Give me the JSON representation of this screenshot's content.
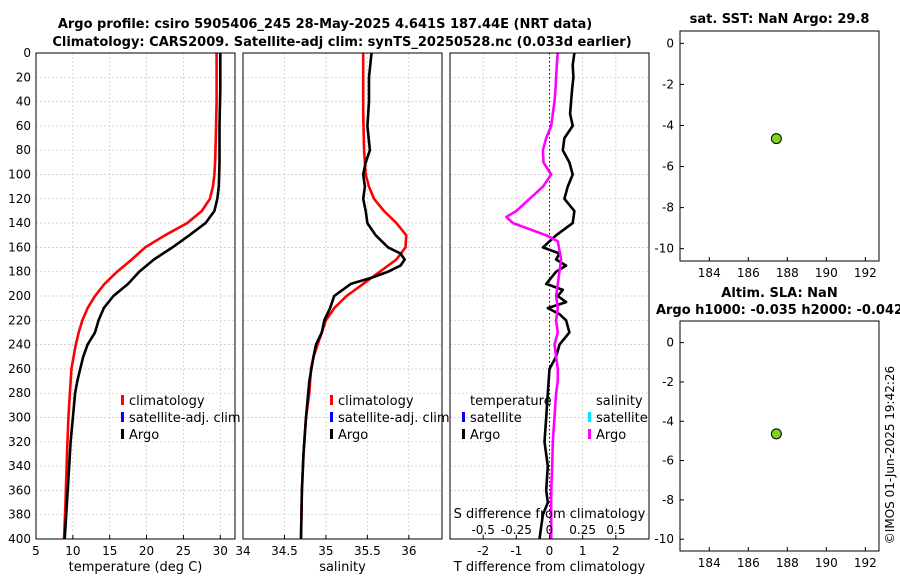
{
  "title_line1": "Argo profile: csiro 5905406_245 28-May-2025 4.641S 187.44E (NRT data)",
  "title_line2": "Climatology: CARS2009. Satellite-adj clim: synTS_20250528.nc (0.033d earlier)",
  "watermark": "©IMOS 01-Jun-2025 19:42:26",
  "colors": {
    "climatology": "#ff0000",
    "satellite": "#0000ff",
    "argo": "#000000",
    "satellite_s": "#00e5ff",
    "argo_s": "#ff00ff",
    "dot": "#7ed321"
  },
  "chart_data": [
    {
      "id": "temp",
      "type": "line",
      "xlabel": "temperature (deg C)",
      "ylabel": "",
      "xlim": [
        5,
        32
      ],
      "ylim": [
        0,
        400
      ],
      "xticks": [
        "5",
        "10",
        "15",
        "20",
        "25",
        "30"
      ],
      "yticks": [
        "0",
        "20",
        "40",
        "60",
        "80",
        "100",
        "120",
        "140",
        "160",
        "180",
        "200",
        "220",
        "240",
        "260",
        "280",
        "300",
        "320",
        "340",
        "360",
        "380",
        "400"
      ],
      "legend": [
        "climatology",
        "satellite-adj. clim",
        "Argo"
      ],
      "series": [
        {
          "name": "climatology",
          "color": "#ff0000",
          "x": [
            29.5,
            29.5,
            29.4,
            29.3,
            29.2,
            29.0,
            28.6,
            27.5,
            25.5,
            22.5,
            19.8,
            18.0,
            16.0,
            14.3,
            13.0,
            12.0,
            11.3,
            10.8,
            10.4,
            10.1,
            9.8,
            9.6,
            9.4,
            9.2,
            9.0,
            8.8
          ],
          "y": [
            0,
            40,
            70,
            90,
            100,
            110,
            120,
            130,
            140,
            150,
            160,
            170,
            180,
            190,
            200,
            210,
            220,
            230,
            240,
            250,
            260,
            280,
            300,
            330,
            370,
            400
          ]
        },
        {
          "name": "Argo",
          "color": "#000000",
          "x": [
            30.0,
            30.0,
            29.9,
            29.9,
            29.8,
            29.6,
            29.2,
            28.0,
            25.8,
            23.5,
            21.0,
            19.0,
            17.5,
            15.5,
            14.2,
            13.5,
            13.0,
            12.0,
            11.4,
            11.0,
            10.6,
            10.3,
            10.0,
            9.7,
            9.5,
            9.3,
            9.1,
            8.9
          ],
          "y": [
            0,
            30,
            60,
            90,
            110,
            120,
            130,
            140,
            150,
            160,
            170,
            180,
            190,
            200,
            210,
            220,
            230,
            240,
            250,
            260,
            270,
            280,
            300,
            320,
            340,
            360,
            380,
            400
          ]
        }
      ]
    },
    {
      "id": "sal",
      "type": "line",
      "xlabel": "salinity",
      "ylabel": "",
      "xlim": [
        34,
        36.4
      ],
      "ylim": [
        0,
        400
      ],
      "xticks": [
        "34",
        "34.5",
        "35",
        "35.5",
        "36"
      ],
      "legend": [
        "climatology",
        "satellite-adj. clim",
        "Argo"
      ],
      "series": [
        {
          "name": "climatology",
          "color": "#ff0000",
          "x": [
            35.45,
            35.45,
            35.46,
            35.48,
            35.52,
            35.58,
            35.7,
            35.85,
            35.97,
            35.96,
            35.85,
            35.65,
            35.45,
            35.25,
            35.1,
            35.0,
            34.95,
            34.9,
            34.85,
            34.82,
            34.8,
            34.76,
            34.73,
            34.71,
            34.7
          ],
          "y": [
            0,
            50,
            80,
            100,
            110,
            120,
            130,
            140,
            150,
            160,
            170,
            180,
            190,
            200,
            210,
            220,
            230,
            240,
            250,
            260,
            280,
            300,
            330,
            360,
            400
          ]
        },
        {
          "name": "Argo",
          "color": "#000000",
          "x": [
            35.55,
            35.52,
            35.52,
            35.5,
            35.53,
            35.48,
            35.45,
            35.47,
            35.45,
            35.48,
            35.5,
            35.6,
            35.75,
            35.9,
            35.95,
            35.9,
            35.75,
            35.55,
            35.3,
            35.1,
            35.05,
            34.98,
            34.95,
            34.88,
            34.85,
            34.8,
            34.76,
            34.73,
            34.71,
            34.7
          ],
          "y": [
            0,
            20,
            40,
            60,
            80,
            90,
            100,
            110,
            120,
            130,
            140,
            150,
            160,
            165,
            170,
            175,
            180,
            185,
            190,
            200,
            210,
            220,
            230,
            240,
            250,
            270,
            300,
            330,
            360,
            400
          ]
        }
      ]
    },
    {
      "id": "diff",
      "type": "line",
      "xlabel": "T difference from climatology",
      "xlabel_top": "S difference from climatology",
      "xlim": [
        -3,
        3
      ],
      "ylim": [
        0,
        400
      ],
      "xticks": [
        "-2",
        "-1",
        "0",
        "1",
        "2"
      ],
      "xticks_top": [
        "-0.5",
        "-0.25",
        "0",
        "0.25",
        "0.5"
      ],
      "legend_t_title": "temperature",
      "legend_s_title": "salinity",
      "legend_t": [
        "satellite",
        "Argo"
      ],
      "legend_s": [
        "satellite",
        "Argo"
      ],
      "series": [
        {
          "name": "T Argo",
          "color": "#000000",
          "x": [
            0.75,
            0.7,
            0.72,
            0.68,
            0.65,
            0.62,
            0.7,
            0.45,
            0.4,
            0.6,
            0.7,
            0.55,
            0.45,
            0.75,
            0.7,
            0.2,
            -0.2,
            0.3,
            0.2,
            0.5,
            0.2,
            -0.1,
            0.4,
            0.25,
            0.5,
            -0.05,
            0.3,
            0.5,
            0.6,
            0.3,
            0.2,
            0.0,
            -0.05,
            -0.1,
            -0.15,
            -0.05,
            -0.1,
            -0.05,
            -0.2,
            -0.3
          ],
          "y": [
            0,
            10,
            20,
            30,
            40,
            50,
            60,
            70,
            80,
            90,
            100,
            110,
            120,
            130,
            140,
            150,
            160,
            165,
            170,
            175,
            180,
            190,
            195,
            200,
            205,
            210,
            215,
            220,
            230,
            240,
            250,
            260,
            280,
            300,
            320,
            340,
            360,
            370,
            380,
            400
          ]
        },
        {
          "name": "S Argo",
          "color": "#ff00ff",
          "x": [
            0.25,
            0.22,
            0.2,
            0.18,
            0.15,
            0.1,
            0.05,
            -0.1,
            -0.2,
            -0.18,
            0.05,
            -0.2,
            -0.6,
            -1.0,
            -1.3,
            -1.1,
            -0.6,
            -0.1,
            0.25,
            0.35,
            0.25,
            0.2,
            0.25,
            0.2,
            0.25,
            0.15,
            0.2,
            0.25,
            0.25,
            0.2,
            0.15,
            0.1,
            0.08,
            0.05,
            0.05,
            0.05
          ],
          "y": [
            0,
            10,
            20,
            30,
            40,
            50,
            60,
            70,
            80,
            90,
            100,
            110,
            120,
            130,
            135,
            140,
            145,
            150,
            155,
            170,
            190,
            200,
            210,
            220,
            230,
            240,
            250,
            260,
            270,
            280,
            300,
            320,
            340,
            360,
            380,
            400
          ]
        }
      ]
    },
    {
      "id": "sst",
      "type": "scatter",
      "title": "sat. SST: NaN Argo: 29.8",
      "xlim": [
        182.5,
        192.7
      ],
      "ylim": [
        -10.6,
        0.6
      ],
      "xticks": [
        "184",
        "186",
        "188",
        "190",
        "192"
      ],
      "yticks": [
        "0",
        "-2",
        "-4",
        "-6",
        "-8",
        "-10"
      ],
      "points": [
        {
          "x": 187.44,
          "y": -4.641
        }
      ]
    },
    {
      "id": "sla",
      "type": "scatter",
      "title": "Altim. SLA: NaN",
      "title2": "Argo h1000: -0.035 h2000: -0.042",
      "xlim": [
        182.5,
        192.7
      ],
      "ylim": [
        -10.6,
        1.1
      ],
      "xticks": [
        "184",
        "186",
        "188",
        "190",
        "192"
      ],
      "yticks": [
        "0",
        "-2",
        "-4",
        "-6",
        "-8",
        "-10"
      ],
      "points": [
        {
          "x": 187.44,
          "y": -4.641
        }
      ]
    }
  ]
}
